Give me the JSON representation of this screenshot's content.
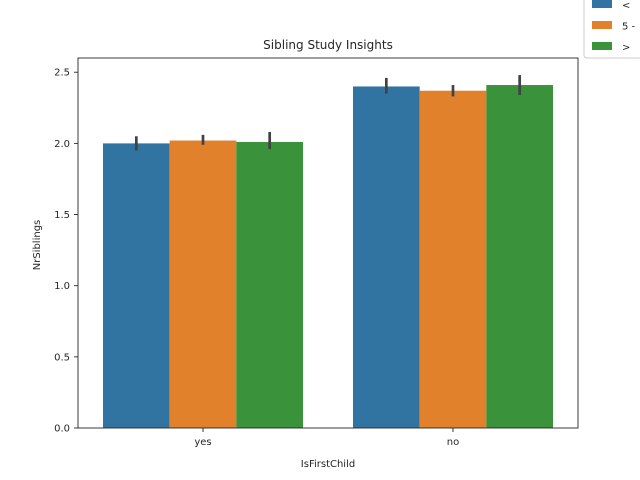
{
  "chart_data": {
    "type": "bar",
    "title": "Sibling Study Insights",
    "xlabel": "IsFirstChild",
    "ylabel": "NrSiblings",
    "categories": [
      "yes",
      "no"
    ],
    "ylim": [
      0,
      2.6
    ],
    "yticks": [
      "0.0",
      "0.5",
      "1.0",
      "1.5",
      "2.0",
      "2.5"
    ],
    "ytick_values": [
      0,
      0.5,
      1.0,
      1.5,
      2.0,
      2.5
    ],
    "grid": false,
    "legend_position": "top-right (clipped)",
    "series": [
      {
        "name": "<",
        "color": "#3274a1",
        "values": [
          2.0,
          2.4
        ],
        "err_low": [
          1.95,
          2.35
        ],
        "err_high": [
          2.05,
          2.46
        ]
      },
      {
        "name": "5 -",
        "color": "#e1812c",
        "values": [
          2.02,
          2.37
        ],
        "err_low": [
          1.99,
          2.33
        ],
        "err_high": [
          2.06,
          2.41
        ]
      },
      {
        "name": ">",
        "color": "#3a923a",
        "values": [
          2.01,
          2.41
        ],
        "err_low": [
          1.96,
          2.34
        ],
        "err_high": [
          2.08,
          2.48
        ]
      }
    ]
  }
}
